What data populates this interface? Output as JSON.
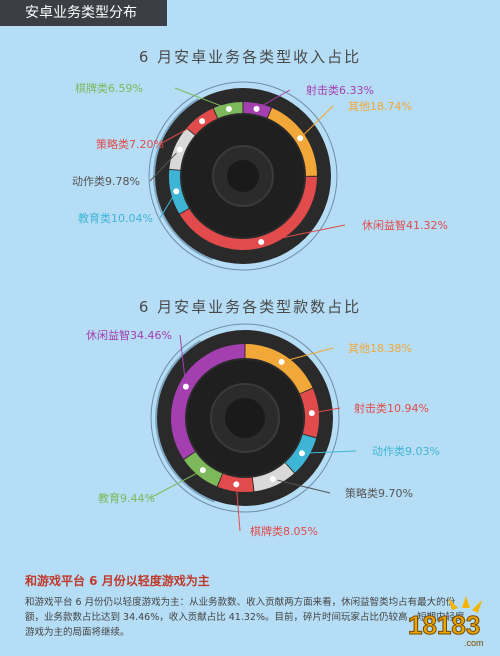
{
  "header": {
    "title": "安卓业务类型分布"
  },
  "chart_data": [
    {
      "type": "pie",
      "title": "6 月安卓业务各类型收入占比",
      "slices": [
        {
          "label": "射击类",
          "value_text": "6.33%",
          "value": 6.33,
          "color": "#a43fb0"
        },
        {
          "label": "其他",
          "value_text": "18.74%",
          "value": 18.74,
          "color": "#f2a838"
        },
        {
          "label": "休闲益智",
          "value_text": "41.32%",
          "value": 41.32,
          "color": "#e24b4b"
        },
        {
          "label": "教育类",
          "value_text": "10.04%",
          "value": 10.04,
          "color": "#3fb5d6"
        },
        {
          "label": "动作类",
          "value_text": "9.78%",
          "value": 9.78,
          "color": "#d9d9d9"
        },
        {
          "label": "策略类",
          "value_text": "7.20%",
          "value": 7.2,
          "color": "#e24b4b"
        },
        {
          "label": "棋牌类",
          "value_text": "6.59%",
          "value": 6.59,
          "color": "#7db85a"
        }
      ]
    },
    {
      "type": "pie",
      "title": "6 月安卓业务各类型款数占比",
      "slices": [
        {
          "label": "其他",
          "value_text": "18.38%",
          "value": 18.38,
          "color": "#f2a838"
        },
        {
          "label": "射击类",
          "value_text": "10.94%",
          "value": 10.94,
          "color": "#e24b4b"
        },
        {
          "label": "动作类",
          "value_text": "9.03%",
          "value": 9.03,
          "color": "#3fb5d6"
        },
        {
          "label": "策略类",
          "value_text": "9.70%",
          "value": 9.7,
          "color": "#d9d9d9"
        },
        {
          "label": "棋牌类",
          "value_text": "8.05%",
          "value": 8.05,
          "color": "#e24b4b"
        },
        {
          "label": "教育",
          "value_text": "9.44%",
          "value": 9.44,
          "color": "#7db85a"
        },
        {
          "label": "休闲益智",
          "value_text": "34.46%",
          "value": 34.46,
          "color": "#a43fb0"
        }
      ]
    }
  ],
  "summary": {
    "title": "和游戏平台 6 月份以轻度游戏为主",
    "body": "和游戏平台 6 月份仍以轻度游戏为主：从业务款数、收入贡献两方面来看，休闲益智类均占有最大的份额，业务款数占比达到 34.46%，收入贡献占比 41.32%。目前，碎片时间玩家占比仍较高，短期内轻度游戏为主的局面将继续。"
  },
  "logo": {
    "text": "18183",
    "sub": ".com"
  }
}
